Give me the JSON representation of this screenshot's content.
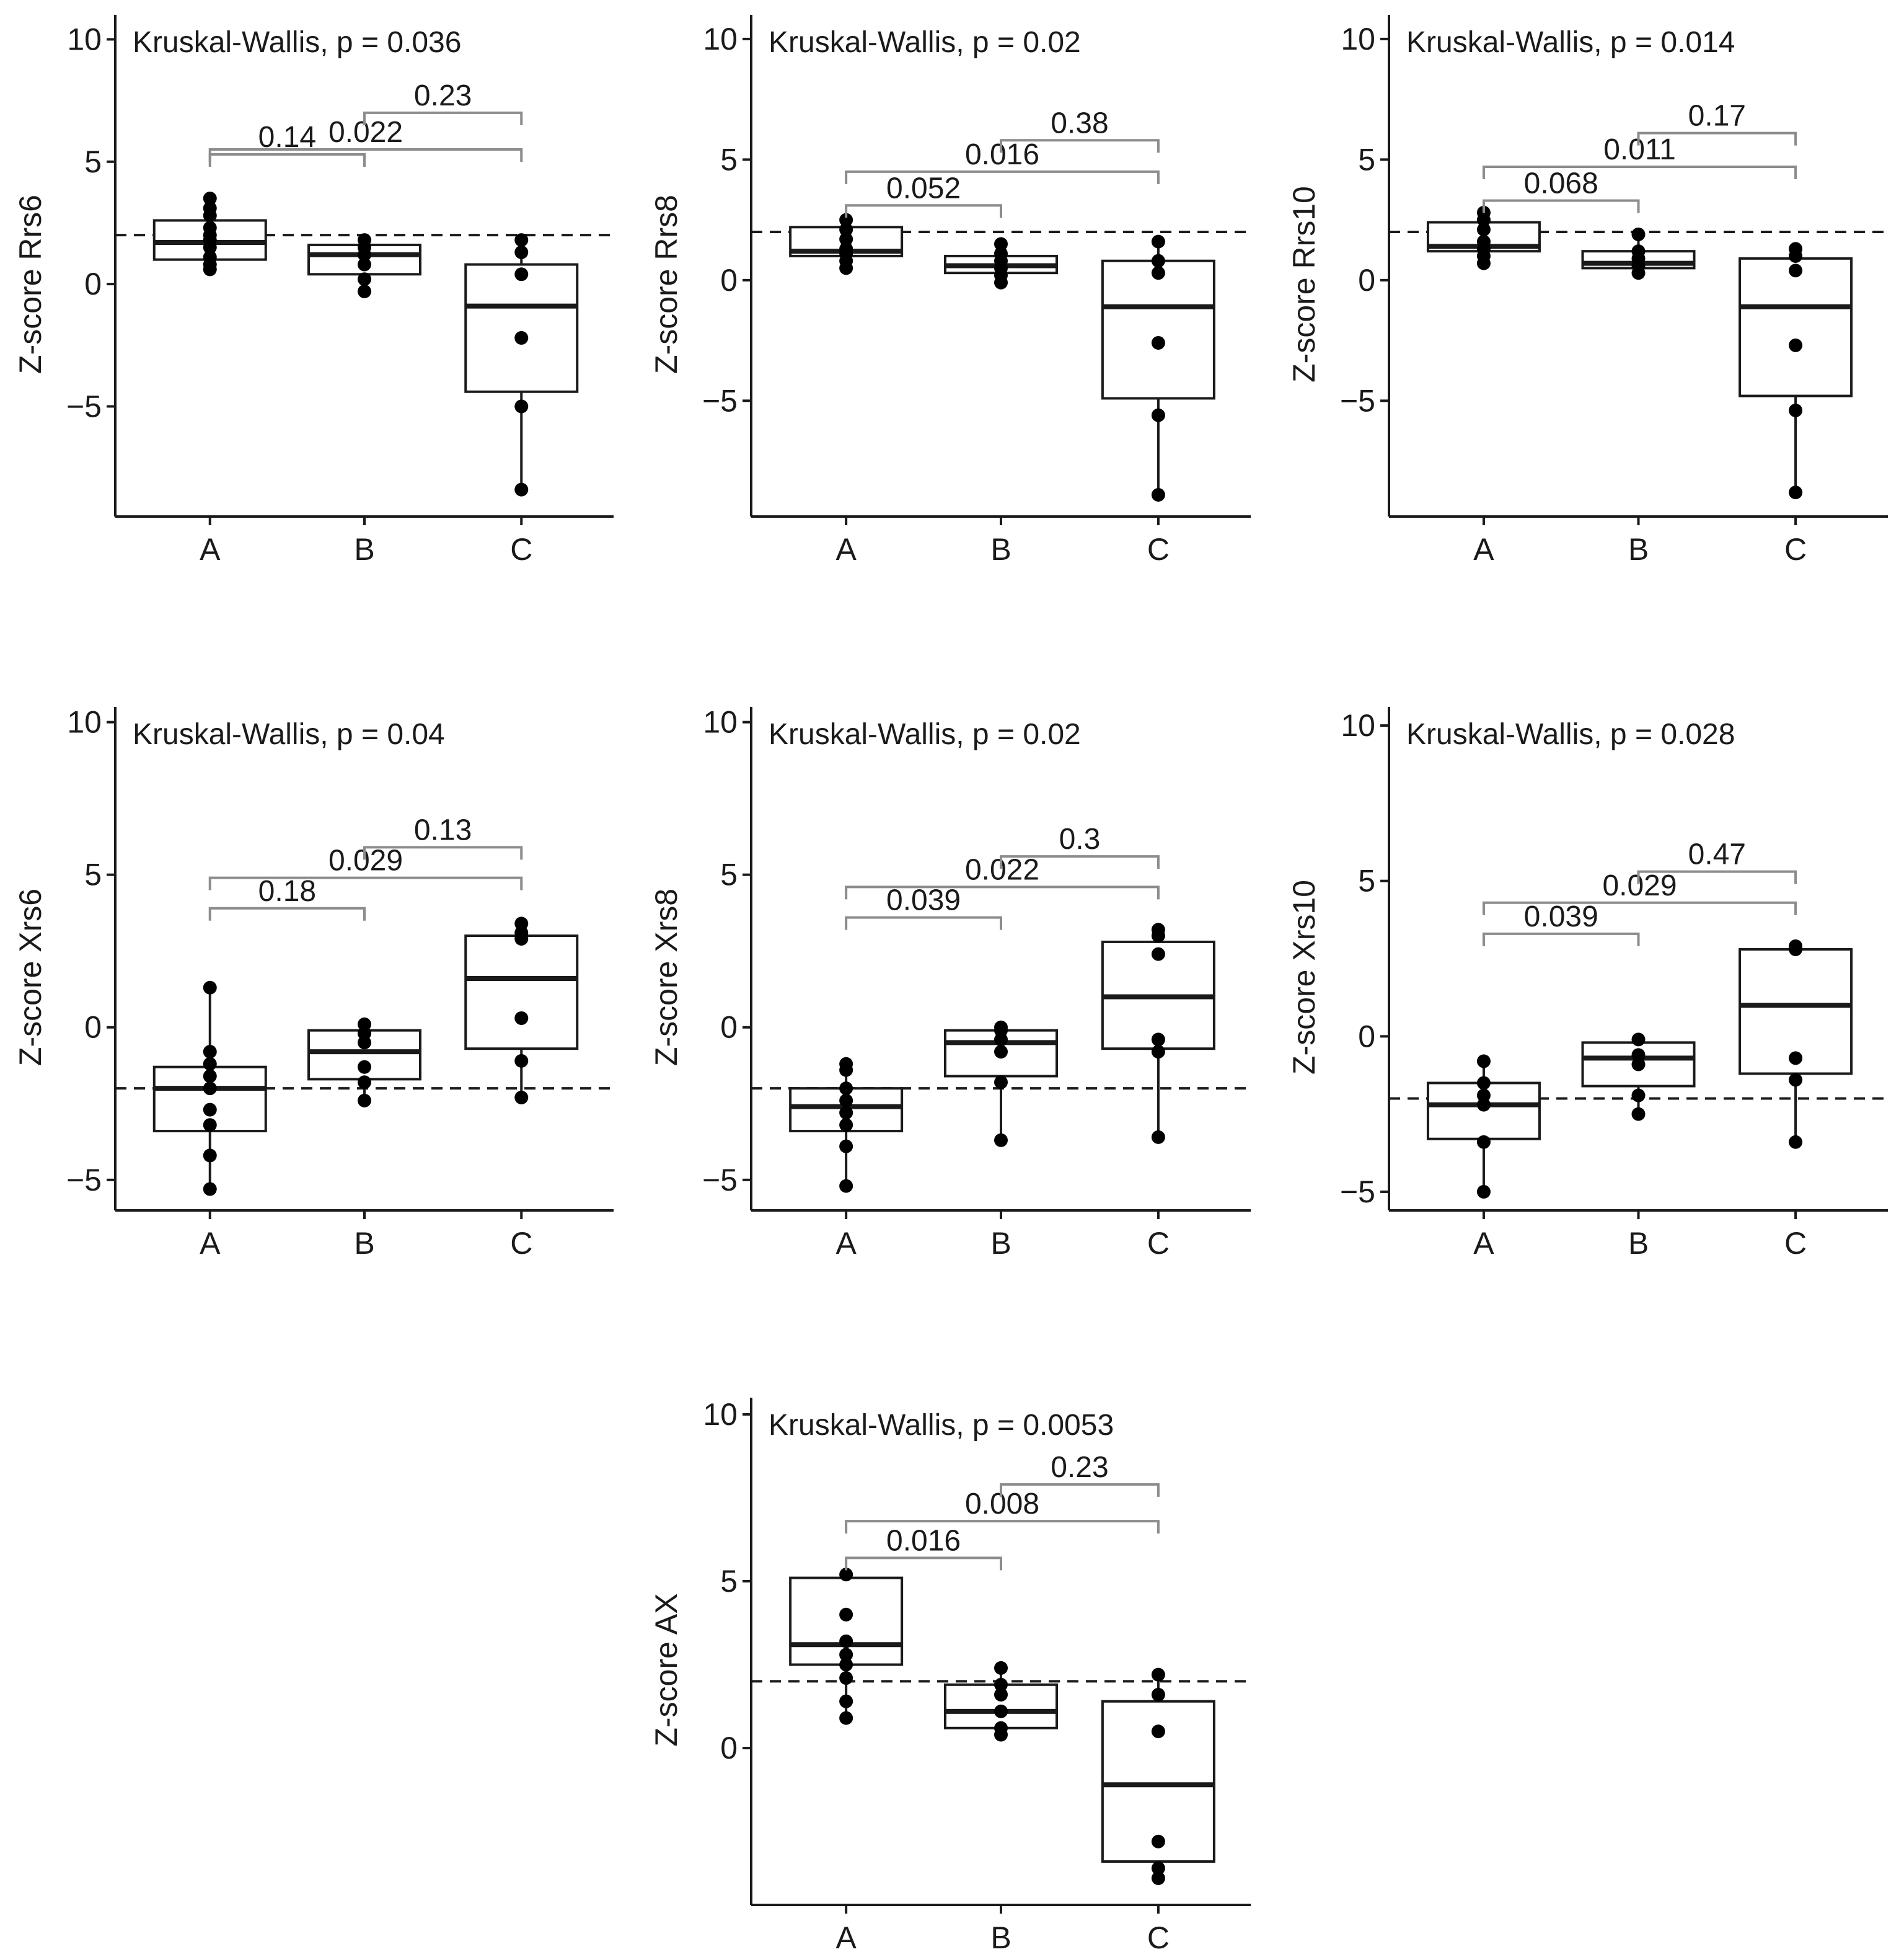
{
  "figure": {
    "reference_line_style": "dashed",
    "colors": {
      "axis": "#1a1a1a",
      "box_fill": "#ffffff",
      "point": "#000000",
      "bracket": "#8c8c8c",
      "reference": "#1a1a1a"
    }
  },
  "chart_data": [
    {
      "type": "box",
      "title": "Kruskal-Wallis, p = 0.036",
      "ylabel": "Z-score Rrs6",
      "xlabel": "",
      "categories": [
        "A",
        "B",
        "C"
      ],
      "ylim": [
        -9.5,
        11
      ],
      "yticks": [
        -5,
        0,
        5,
        10
      ],
      "ytick_labels": [
        "−5",
        "0",
        "5",
        "10"
      ],
      "reference_line": 2,
      "boxes": [
        {
          "group": "A",
          "q1": 1.0,
          "median": 1.7,
          "q3": 2.6,
          "whisker_low": 0.6,
          "whisker_high": 3.5,
          "points": [
            0.6,
            0.8,
            1.1,
            1.5,
            1.8,
            2.0,
            2.3,
            2.8,
            3.1,
            3.5
          ]
        },
        {
          "group": "B",
          "q1": 0.4,
          "median": 1.2,
          "q3": 1.6,
          "whisker_low": -0.3,
          "whisker_high": 1.8,
          "points": [
            -0.3,
            0.2,
            0.8,
            1.2,
            1.5,
            1.8
          ]
        },
        {
          "group": "C",
          "q1": -4.4,
          "median": -0.9,
          "q3": 0.8,
          "whisker_low": -8.4,
          "whisker_high": 1.8,
          "points": [
            -8.4,
            -5.0,
            -2.2,
            0.4,
            1.3,
            1.8
          ]
        }
      ],
      "comparisons": [
        {
          "groups": [
            "A",
            "B"
          ],
          "p": "0.14",
          "level": 5.3
        },
        {
          "groups": [
            "A",
            "C"
          ],
          "p": "0.022",
          "level": 5.5
        },
        {
          "groups": [
            "B",
            "C"
          ],
          "p": "0.23",
          "level": 7.0
        }
      ]
    },
    {
      "type": "box",
      "title": "Kruskal-Wallis, p = 0.02",
      "ylabel": "Z-score Rrs8",
      "xlabel": "",
      "categories": [
        "A",
        "B",
        "C"
      ],
      "ylim": [
        -9.8,
        11
      ],
      "yticks": [
        -5,
        0,
        5,
        10
      ],
      "ytick_labels": [
        "−5",
        "0",
        "5",
        "10"
      ],
      "reference_line": 2,
      "boxes": [
        {
          "group": "A",
          "q1": 1.0,
          "median": 1.2,
          "q3": 2.2,
          "whisker_low": 0.5,
          "whisker_high": 2.5,
          "points": [
            0.5,
            0.8,
            1.1,
            1.3,
            1.7,
            2.1,
            2.5
          ]
        },
        {
          "group": "B",
          "q1": 0.3,
          "median": 0.6,
          "q3": 1.0,
          "whisker_low": -0.1,
          "whisker_high": 1.5,
          "points": [
            -0.1,
            0.2,
            0.5,
            0.8,
            1.1,
            1.5
          ]
        },
        {
          "group": "C",
          "q1": -4.9,
          "median": -1.1,
          "q3": 0.8,
          "whisker_low": -8.9,
          "whisker_high": 1.6,
          "points": [
            -8.9,
            -5.6,
            -2.6,
            0.3,
            0.8,
            1.6
          ]
        }
      ],
      "comparisons": [
        {
          "groups": [
            "A",
            "B"
          ],
          "p": "0.052",
          "level": 3.1
        },
        {
          "groups": [
            "A",
            "C"
          ],
          "p": "0.016",
          "level": 4.5
        },
        {
          "groups": [
            "B",
            "C"
          ],
          "p": "0.38",
          "level": 5.8
        }
      ]
    },
    {
      "type": "box",
      "title": "Kruskal-Wallis, p = 0.014",
      "ylabel": "Z-score Rrs10",
      "xlabel": "",
      "categories": [
        "A",
        "B",
        "C"
      ],
      "ylim": [
        -9.8,
        11
      ],
      "yticks": [
        -5,
        0,
        5,
        10
      ],
      "ytick_labels": [
        "−5",
        "0",
        "5",
        "10"
      ],
      "reference_line": 2,
      "boxes": [
        {
          "group": "A",
          "q1": 1.2,
          "median": 1.4,
          "q3": 2.4,
          "whisker_low": 0.7,
          "whisker_high": 2.8,
          "points": [
            0.7,
            1.0,
            1.3,
            1.6,
            2.1,
            2.5,
            2.8
          ]
        },
        {
          "group": "B",
          "q1": 0.5,
          "median": 0.7,
          "q3": 1.2,
          "whisker_low": 0.3,
          "whisker_high": 1.9,
          "points": [
            0.3,
            0.6,
            0.9,
            1.2,
            1.9
          ]
        },
        {
          "group": "C",
          "q1": -4.8,
          "median": -1.1,
          "q3": 0.9,
          "whisker_low": -8.8,
          "whisker_high": 1.3,
          "points": [
            -8.8,
            -5.4,
            -2.7,
            0.4,
            1.0,
            1.3
          ]
        }
      ],
      "comparisons": [
        {
          "groups": [
            "A",
            "B"
          ],
          "p": "0.068",
          "level": 3.3
        },
        {
          "groups": [
            "A",
            "C"
          ],
          "p": "0.011",
          "level": 4.7
        },
        {
          "groups": [
            "B",
            "C"
          ],
          "p": "0.17",
          "level": 6.1
        }
      ]
    },
    {
      "type": "box",
      "title": "Kruskal-Wallis, p = 0.04",
      "ylabel": "Z-score Xrs6",
      "xlabel": "",
      "categories": [
        "A",
        "B",
        "C"
      ],
      "ylim": [
        -6.0,
        10.5
      ],
      "yticks": [
        -5,
        0,
        5,
        10
      ],
      "ytick_labels": [
        "−5",
        "0",
        "5",
        "10"
      ],
      "reference_line": -2,
      "boxes": [
        {
          "group": "A",
          "q1": -3.4,
          "median": -2.0,
          "q3": -1.3,
          "whisker_low": -5.3,
          "whisker_high": 1.3,
          "points": [
            -5.3,
            -4.2,
            -3.2,
            -2.7,
            -2.0,
            -1.6,
            -1.2,
            -0.8,
            1.3
          ]
        },
        {
          "group": "B",
          "q1": -1.7,
          "median": -0.8,
          "q3": -0.1,
          "whisker_low": -2.4,
          "whisker_high": 0.1,
          "points": [
            -2.4,
            -1.8,
            -1.3,
            -0.5,
            -0.2,
            0.1
          ]
        },
        {
          "group": "C",
          "q1": -0.7,
          "median": 1.6,
          "q3": 3.0,
          "whisker_low": -2.3,
          "whisker_high": 3.4,
          "points": [
            -2.3,
            -1.1,
            0.3,
            2.9,
            3.1,
            3.4
          ]
        }
      ],
      "comparisons": [
        {
          "groups": [
            "A",
            "B"
          ],
          "p": "0.18",
          "level": 3.9
        },
        {
          "groups": [
            "A",
            "C"
          ],
          "p": "0.029",
          "level": 4.9
        },
        {
          "groups": [
            "B",
            "C"
          ],
          "p": "0.13",
          "level": 5.9
        }
      ]
    },
    {
      "type": "box",
      "title": "Kruskal-Wallis, p = 0.02",
      "ylabel": "Z-score Xrs8",
      "xlabel": "",
      "categories": [
        "A",
        "B",
        "C"
      ],
      "ylim": [
        -6.0,
        10.5
      ],
      "yticks": [
        -5,
        0,
        5,
        10
      ],
      "ytick_labels": [
        "−5",
        "0",
        "5",
        "10"
      ],
      "reference_line": -2,
      "boxes": [
        {
          "group": "A",
          "q1": -3.4,
          "median": -2.6,
          "q3": -2.0,
          "whisker_low": -5.2,
          "whisker_high": -1.2,
          "points": [
            -5.2,
            -3.9,
            -3.2,
            -2.8,
            -2.4,
            -2.0,
            -1.4,
            -1.2
          ]
        },
        {
          "group": "B",
          "q1": -1.6,
          "median": -0.5,
          "q3": -0.1,
          "whisker_low": -3.7,
          "whisker_high": 0.0,
          "points": [
            -3.7,
            -1.8,
            -0.8,
            -0.4,
            -0.1,
            0.0
          ]
        },
        {
          "group": "C",
          "q1": -0.7,
          "median": 1.0,
          "q3": 2.8,
          "whisker_low": -3.6,
          "whisker_high": 3.2,
          "points": [
            -3.6,
            -0.8,
            -0.4,
            2.4,
            3.0,
            3.2
          ]
        }
      ],
      "comparisons": [
        {
          "groups": [
            "A",
            "B"
          ],
          "p": "0.039",
          "level": 3.6
        },
        {
          "groups": [
            "A",
            "C"
          ],
          "p": "0.022",
          "level": 4.6
        },
        {
          "groups": [
            "B",
            "C"
          ],
          "p": "0.3",
          "level": 5.6
        }
      ]
    },
    {
      "type": "box",
      "title": "Kruskal-Wallis, p = 0.028",
      "ylabel": "Z-score Xrs10",
      "xlabel": "",
      "categories": [
        "A",
        "B",
        "C"
      ],
      "ylim": [
        -5.6,
        10.6
      ],
      "yticks": [
        -5,
        0,
        5,
        10
      ],
      "ytick_labels": [
        "−5",
        "0",
        "5",
        "10"
      ],
      "reference_line": -2,
      "boxes": [
        {
          "group": "A",
          "q1": -3.3,
          "median": -2.2,
          "q3": -1.5,
          "whisker_low": -5.0,
          "whisker_high": -0.8,
          "points": [
            -5.0,
            -3.4,
            -2.2,
            -1.9,
            -1.5,
            -0.8
          ]
        },
        {
          "group": "B",
          "q1": -1.6,
          "median": -0.7,
          "q3": -0.2,
          "whisker_low": -2.5,
          "whisker_high": -0.1,
          "points": [
            -2.5,
            -1.9,
            -0.9,
            -0.6,
            -0.1
          ]
        },
        {
          "group": "C",
          "q1": -1.2,
          "median": 1.0,
          "q3": 2.8,
          "whisker_low": -3.4,
          "whisker_high": 2.9,
          "points": [
            -3.4,
            -1.4,
            -0.7,
            2.8,
            2.9
          ]
        }
      ],
      "comparisons": [
        {
          "groups": [
            "A",
            "B"
          ],
          "p": "0.039",
          "level": 3.3
        },
        {
          "groups": [
            "A",
            "C"
          ],
          "p": "0.029",
          "level": 4.3
        },
        {
          "groups": [
            "B",
            "C"
          ],
          "p": "0.47",
          "level": 5.3
        }
      ]
    },
    {
      "type": "box",
      "title": "Kruskal-Wallis, p = 0.0053",
      "ylabel": "Z-score AX",
      "xlabel": "",
      "categories": [
        "A",
        "B",
        "C"
      ],
      "ylim": [
        -4.7,
        10.5
      ],
      "yticks": [
        0,
        5,
        10
      ],
      "ytick_labels": [
        "0",
        "5",
        "10"
      ],
      "reference_line": 2,
      "boxes": [
        {
          "group": "A",
          "q1": 2.5,
          "median": 3.1,
          "q3": 5.1,
          "whisker_low": 0.9,
          "whisker_high": 5.2,
          "points": [
            0.9,
            1.4,
            2.1,
            2.5,
            2.8,
            3.2,
            4.0,
            5.2
          ]
        },
        {
          "group": "B",
          "q1": 0.6,
          "median": 1.1,
          "q3": 1.9,
          "whisker_low": 0.4,
          "whisker_high": 2.4,
          "points": [
            0.4,
            0.6,
            1.1,
            1.6,
            1.9,
            2.4
          ]
        },
        {
          "group": "C",
          "q1": -3.4,
          "median": -1.1,
          "q3": 1.4,
          "whisker_low": -3.9,
          "whisker_high": 2.2,
          "points": [
            -3.9,
            -3.6,
            -2.8,
            0.5,
            1.6,
            2.2
          ]
        }
      ],
      "comparisons": [
        {
          "groups": [
            "A",
            "B"
          ],
          "p": "0.016",
          "level": 5.7
        },
        {
          "groups": [
            "A",
            "C"
          ],
          "p": "0.008",
          "level": 6.8
        },
        {
          "groups": [
            "B",
            "C"
          ],
          "p": "0.23",
          "level": 7.9
        }
      ]
    }
  ]
}
